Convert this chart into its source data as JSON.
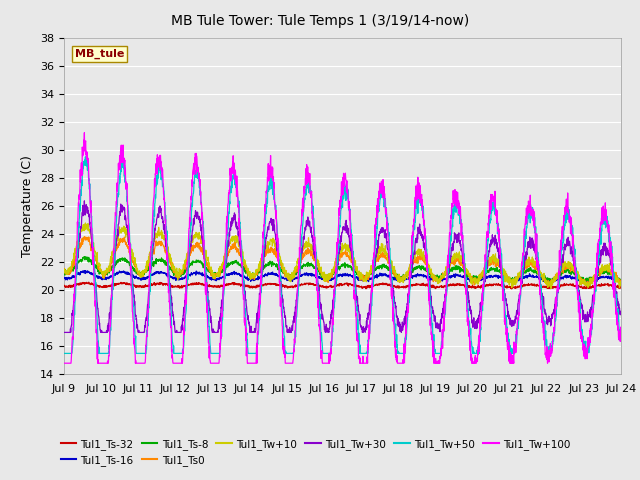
{
  "title": "MB Tule Tower: Tule Temps 1 (3/19/14-now)",
  "ylabel": "Temperature (C)",
  "xlim": [
    0,
    15
  ],
  "ylim": [
    14,
    38
  ],
  "yticks": [
    14,
    16,
    18,
    20,
    22,
    24,
    26,
    28,
    30,
    32,
    34,
    36,
    38
  ],
  "xtick_labels": [
    "Jul 9",
    "Jul 10",
    "Jul 11",
    "Jul 12",
    "Jul 13",
    "Jul 14",
    "Jul 15",
    "Jul 16",
    "Jul 17",
    "Jul 18",
    "Jul 19",
    "Jul 20",
    "Jul 21",
    "Jul 22",
    "Jul 23",
    "Jul 24"
  ],
  "xtick_positions": [
    0,
    1,
    2,
    3,
    4,
    5,
    6,
    7,
    8,
    9,
    10,
    11,
    12,
    13,
    14,
    15
  ],
  "series_colors": {
    "Tul1_Ts-32": "#cc0000",
    "Tul1_Ts-16": "#0000cc",
    "Tul1_Ts-8": "#00aa00",
    "Tul1_Ts0": "#ff8800",
    "Tul1_Tw+10": "#cccc00",
    "Tul1_Tw+30": "#8800cc",
    "Tul1_Tw+50": "#00cccc",
    "Tul1_Tw+100": "#ff00ff"
  },
  "background_color": "#e8e8e8",
  "plot_bg_color": "#e8e8e8",
  "grid_color": "#ffffff",
  "watermark_text": "MB_tule",
  "watermark_bg": "#ffffcc",
  "watermark_border": "#aa8800"
}
